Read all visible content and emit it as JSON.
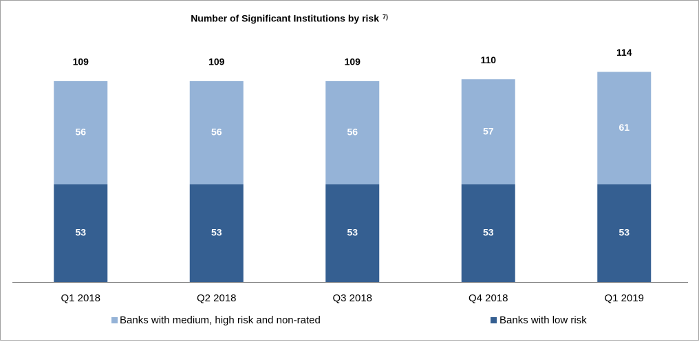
{
  "chart_data": {
    "type": "stacked_bar",
    "title": "Number of Significant Institutions by risk",
    "title_note": "7)",
    "categories": [
      "Q1 2018",
      "Q2 2018",
      "Q3 2018",
      "Q4 2018",
      "Q1 2019"
    ],
    "series": [
      {
        "name": "Banks with low risk",
        "color": "#355f91",
        "values": [
          53,
          53,
          53,
          53,
          53
        ]
      },
      {
        "name": "Banks with medium, high risk and non-rated",
        "color": "#95b3d7",
        "values": [
          56,
          56,
          56,
          57,
          61
        ]
      }
    ],
    "totals": [
      109,
      109,
      109,
      110,
      114
    ]
  }
}
